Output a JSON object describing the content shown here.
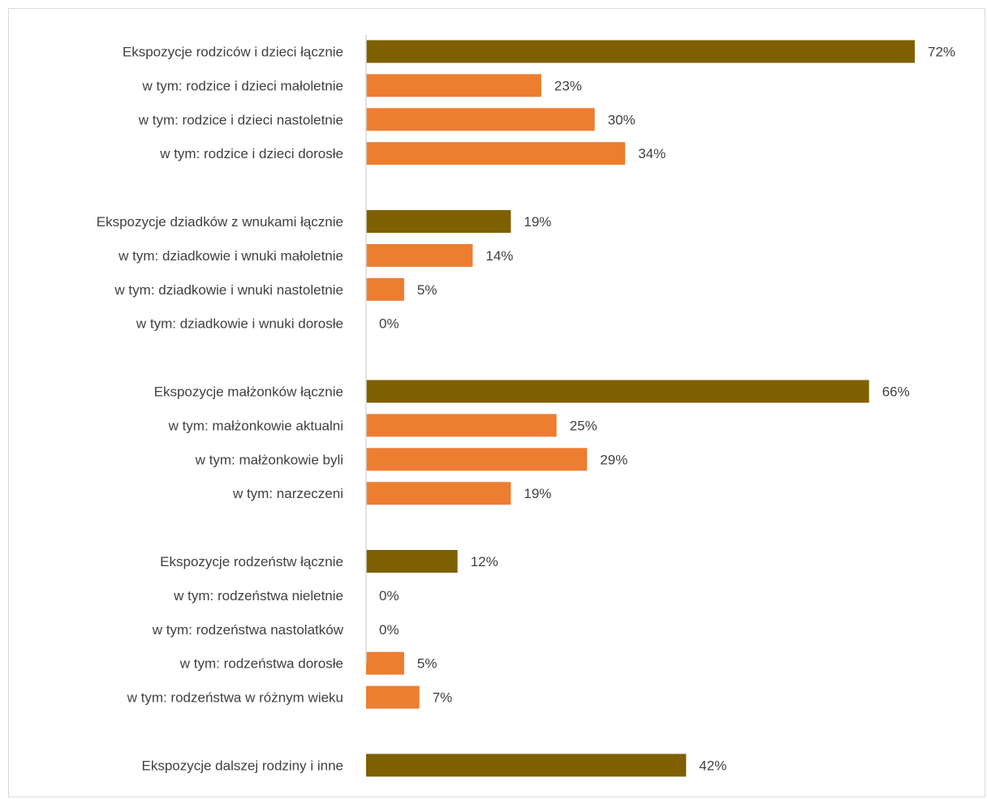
{
  "chart_data": {
    "type": "bar",
    "orientation": "horizontal",
    "xlim": [
      0,
      72
    ],
    "grid": false,
    "legend": "none",
    "colors": {
      "total": "#7f6000",
      "subcategory": "#ed7d31",
      "axis": "#d9d9d9",
      "text": "#404040"
    },
    "groups": [
      {
        "items": [
          {
            "label": "Ekspozycje rodziców i dzieci łącznie",
            "value": 72,
            "value_label": "72%",
            "kind": "total"
          },
          {
            "label": "w tym: rodzice i dzieci małoletnie",
            "value": 23,
            "value_label": "23%",
            "kind": "subcategory"
          },
          {
            "label": "w tym: rodzice i dzieci nastoletnie",
            "value": 30,
            "value_label": "30%",
            "kind": "subcategory"
          },
          {
            "label": "w tym: rodzice i dzieci dorosłe",
            "value": 34,
            "value_label": "34%",
            "kind": "subcategory"
          }
        ]
      },
      {
        "items": [
          {
            "label": "Ekspozycje dziadków z wnukami łącznie",
            "value": 19,
            "value_label": "19%",
            "kind": "total"
          },
          {
            "label": "w tym: dziadkowie i wnuki małoletnie",
            "value": 14,
            "value_label": "14%",
            "kind": "subcategory"
          },
          {
            "label": "w tym: dziadkowie i wnuki nastoletnie",
            "value": 5,
            "value_label": "5%",
            "kind": "subcategory"
          },
          {
            "label": "w tym: dziadkowie i wnuki dorosłe",
            "value": 0,
            "value_label": "0%",
            "kind": "subcategory"
          }
        ]
      },
      {
        "items": [
          {
            "label": "Ekspozycje małżonków łącznie",
            "value": 66,
            "value_label": "66%",
            "kind": "total"
          },
          {
            "label": "w tym: małżonkowie aktualni",
            "value": 25,
            "value_label": "25%",
            "kind": "subcategory"
          },
          {
            "label": "w tym:  małżonkowie byli",
            "value": 29,
            "value_label": "29%",
            "kind": "subcategory"
          },
          {
            "label": "w tym:  narzeczeni",
            "value": 19,
            "value_label": "19%",
            "kind": "subcategory"
          }
        ]
      },
      {
        "items": [
          {
            "label": "Ekspozycje rodzeństw łącznie",
            "value": 12,
            "value_label": "12%",
            "kind": "total"
          },
          {
            "label": "w tym: rodzeństwa nieletnie",
            "value": 0,
            "value_label": "0%",
            "kind": "subcategory"
          },
          {
            "label": "w tym:  rodzeństwa nastolatków",
            "value": 0,
            "value_label": "0%",
            "kind": "subcategory"
          },
          {
            "label": "w tym:  rodzeństwa dorosłe",
            "value": 5,
            "value_label": "5%",
            "kind": "subcategory"
          },
          {
            "label": "w tym:  rodzeństwa w różnym wieku",
            "value": 7,
            "value_label": "7%",
            "kind": "subcategory"
          }
        ]
      },
      {
        "items": [
          {
            "label": "Ekspozycje dalszej rodziny i inne",
            "value": 42,
            "value_label": "42%",
            "kind": "total"
          }
        ]
      }
    ]
  }
}
